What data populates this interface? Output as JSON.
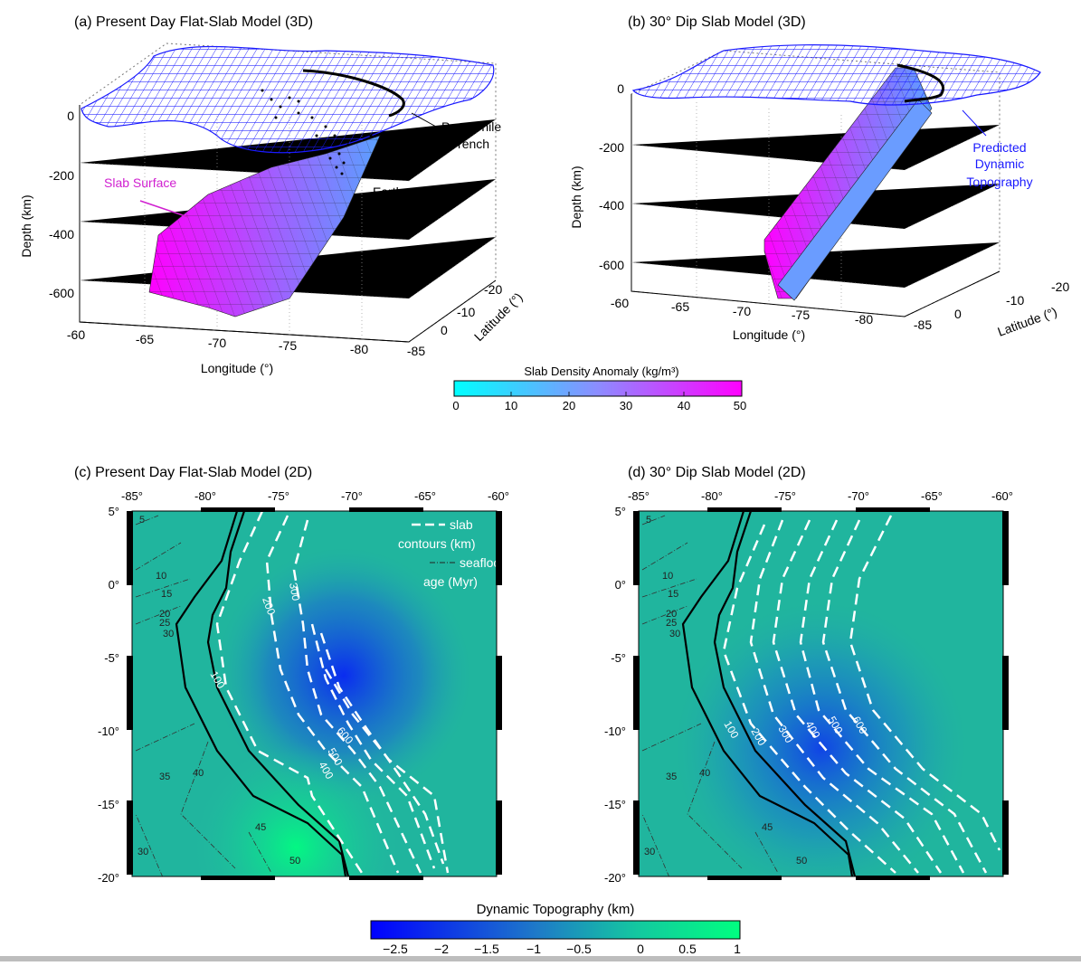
{
  "panels": {
    "a": {
      "title": "(a) Present Day Flat-Slab Model (3D)",
      "depth_label": "Depth (km)",
      "depth_ticks": [
        "0",
        "-200",
        "-400",
        "-600"
      ],
      "lon_label": "Longitude (°)",
      "lon_ticks": [
        "-60",
        "-65",
        "-70",
        "-75",
        "-80",
        "-85"
      ],
      "lat_label": "Latitude (°)",
      "lat_ticks": [
        "0",
        "-10",
        "-20"
      ],
      "annotations": {
        "trench": [
          "Peru-Chile",
          "Trench"
        ],
        "earthquakes": "Earthquakes",
        "slab_surface": "Slab Surface"
      }
    },
    "b": {
      "title": "(b) 30° Dip Slab Model (3D)",
      "depth_label": "Depth (km)",
      "depth_ticks": [
        "0",
        "-200",
        "-400",
        "-600"
      ],
      "lon_label": "Longitude (°)",
      "lon_ticks": [
        "-60",
        "-65",
        "-70",
        "-75",
        "-80",
        "-85"
      ],
      "lat_label": "Latitude (°)",
      "lat_ticks": [
        "0",
        "-10",
        "-20"
      ],
      "annotations": {
        "topo": [
          "Predicted",
          "Dynamic",
          "Topography"
        ]
      }
    },
    "c": {
      "title": "(c) Present Day Flat-Slab Model (2D)",
      "lon_ticks": [
        "-85°",
        "-80°",
        "-75°",
        "-70°",
        "-65°",
        "-60°"
      ],
      "lat_ticks": [
        "5°",
        "0°",
        "-5°",
        "-10°",
        "-15°",
        "-20°"
      ],
      "legend": [
        "slab",
        "contours (km)",
        "seafloor",
        "age (Myr)"
      ],
      "slab_contour_labels": [
        "100",
        "200",
        "300",
        "400",
        "500",
        "600"
      ],
      "age_labels": [
        "5",
        "10",
        "15",
        "20",
        "25",
        "30",
        "35",
        "40",
        "45",
        "50",
        "30"
      ]
    },
    "d": {
      "title": "(d) 30° Dip Slab Model (2D)",
      "lon_ticks": [
        "-85°",
        "-80°",
        "-75°",
        "-70°",
        "-65°",
        "-60°"
      ],
      "lat_ticks": [
        "5°",
        "0°",
        "-5°",
        "-10°",
        "-15°",
        "-20°"
      ],
      "slab_contour_labels": [
        "100",
        "200",
        "300",
        "400",
        "500",
        "600"
      ],
      "age_labels": [
        "5",
        "10",
        "15",
        "20",
        "25",
        "30",
        "35",
        "40",
        "45",
        "50",
        "30"
      ]
    }
  },
  "colorbars": {
    "density": {
      "title": "Slab Density Anomaly (kg/m³)",
      "ticks": [
        "0",
        "10",
        "20",
        "30",
        "40",
        "50"
      ],
      "colors": [
        "#00ffff",
        "#ff00ff"
      ]
    },
    "topography": {
      "title": "Dynamic Topography (km)",
      "ticks": [
        "−2.5",
        "−2",
        "−1.5",
        "−1",
        "−0.5",
        "0",
        "0.5",
        "1"
      ],
      "colors": [
        "#0000ff",
        "#00ff7f"
      ]
    }
  }
}
